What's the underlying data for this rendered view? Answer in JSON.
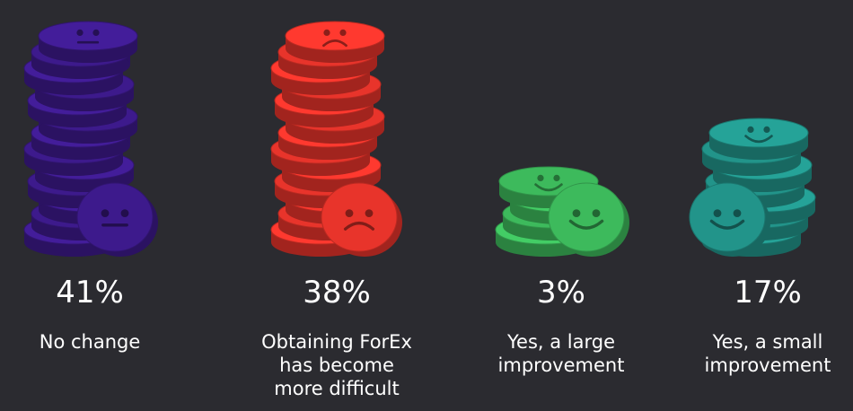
{
  "chart_data": {
    "type": "pictograph",
    "categories": [
      "No change",
      "Obtaining ForEx has become more difficult",
      "Yes, a large improvement",
      "Yes, a small improvement"
    ],
    "values": [
      41,
      38,
      3,
      17
    ],
    "value_labels": [
      "41%",
      "38%",
      "3%",
      "17%"
    ],
    "colors": [
      "#3d1a8c",
      "#e8342b",
      "#3dba5c",
      "#22948a"
    ]
  }
}
